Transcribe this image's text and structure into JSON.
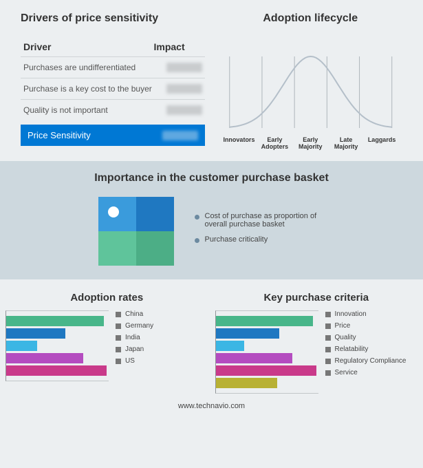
{
  "section1": {
    "title": "Drivers of price sensitivity",
    "headers": {
      "driver": "Driver",
      "impact": "Impact"
    },
    "rows": [
      {
        "label": "Purchases are undifferentiated"
      },
      {
        "label": "Purchase is a key cost to the buyer"
      },
      {
        "label": "Quality is not important"
      }
    ],
    "summary": {
      "label": "Price Sensitivity",
      "bar_color": "#0078d4"
    }
  },
  "lifecycle": {
    "title": "Adoption lifecycle",
    "curve_color": "#b4bfc9",
    "grid_color": "#aeb5bb",
    "background_color": "#eceff1",
    "labels": [
      "Innovators",
      "Early\nAdopters",
      "Early\nMajority",
      "Late\nMajority",
      "Laggards"
    ]
  },
  "importance": {
    "title": "Importance in the customer purchase basket",
    "background_color": "#cdd8de",
    "quadrant_colors": [
      "#3a9bdc",
      "#1f78c1",
      "#5fc49b",
      "#4cae86"
    ],
    "dot_color": "#ffffff",
    "legend": [
      {
        "bullet": "#6c8aa0",
        "text": "Cost of purchase as proportion of overall purchase basket"
      },
      {
        "bullet": "#6c8aa0",
        "text": "Purchase criticality"
      }
    ]
  },
  "adoption_rates": {
    "title": "Adoption rates",
    "type": "bar",
    "axis_color": "#909498",
    "max": 100,
    "items": [
      {
        "label": "China",
        "value": 95,
        "color": "#48b68a"
      },
      {
        "label": "Germany",
        "value": 58,
        "color": "#1f78c1"
      },
      {
        "label": "India",
        "value": 30,
        "color": "#3bb6e4"
      },
      {
        "label": "Japan",
        "value": 75,
        "color": "#b44cc0"
      },
      {
        "label": "US",
        "value": 98,
        "color": "#c93a8a"
      }
    ]
  },
  "purchase_criteria": {
    "title": "Key purchase criteria",
    "type": "bar",
    "axis_color": "#909498",
    "max": 100,
    "items": [
      {
        "label": "Innovation",
        "value": 95,
        "color": "#48b68a"
      },
      {
        "label": "Price",
        "value": 62,
        "color": "#1f78c1"
      },
      {
        "label": "Quality",
        "value": 28,
        "color": "#3bb6e4"
      },
      {
        "label": "Relatability",
        "value": 75,
        "color": "#b44cc0"
      },
      {
        "label": "Regulatory Compliance",
        "value": 98,
        "color": "#c93a8a"
      },
      {
        "label": "Service",
        "value": 60,
        "color": "#b8b134"
      }
    ]
  },
  "footer": "www.technavio.com"
}
